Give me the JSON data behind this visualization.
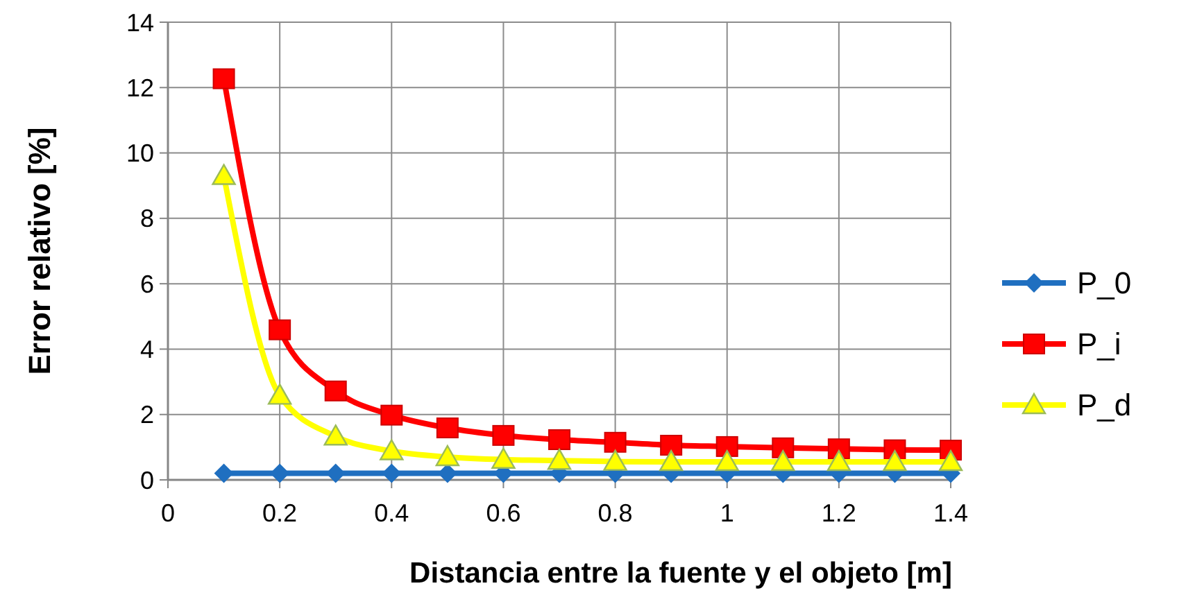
{
  "chart_data": {
    "type": "line",
    "xlabel": "Distancia entre la fuente y el objeto [m]",
    "ylabel": "Error relativo [%]",
    "x": [
      0.1,
      0.2,
      0.3,
      0.4,
      0.5,
      0.6,
      0.7,
      0.8,
      0.9,
      1.0,
      1.1,
      1.2,
      1.3,
      1.4
    ],
    "series": [
      {
        "name": "P_0",
        "color": "#1f6fc0",
        "marker": "diamond",
        "values": [
          0.2,
          0.2,
          0.2,
          0.2,
          0.2,
          0.2,
          0.2,
          0.2,
          0.2,
          0.2,
          0.2,
          0.2,
          0.2,
          0.2
        ]
      },
      {
        "name": "P_i",
        "color": "#ff0000",
        "marker": "square",
        "values": [
          12.27,
          4.59,
          2.72,
          1.98,
          1.59,
          1.36,
          1.23,
          1.15,
          1.06,
          1.02,
          0.98,
          0.95,
          0.92,
          0.91
        ]
      },
      {
        "name": "P_d",
        "color": "#ffff00",
        "marker": "triangle",
        "values": [
          9.3,
          2.58,
          1.33,
          0.88,
          0.7,
          0.62,
          0.59,
          0.56,
          0.55,
          0.55,
          0.55,
          0.55,
          0.55,
          0.55
        ]
      }
    ],
    "xlim": [
      0,
      1.4
    ],
    "xticks": [
      0,
      0.2,
      0.4,
      0.6,
      0.8,
      1,
      1.2,
      1.4
    ],
    "ylim": [
      0,
      14
    ],
    "yticks": [
      0,
      2,
      4,
      6,
      8,
      10,
      12,
      14
    ],
    "grid": true,
    "legend": "right"
  }
}
